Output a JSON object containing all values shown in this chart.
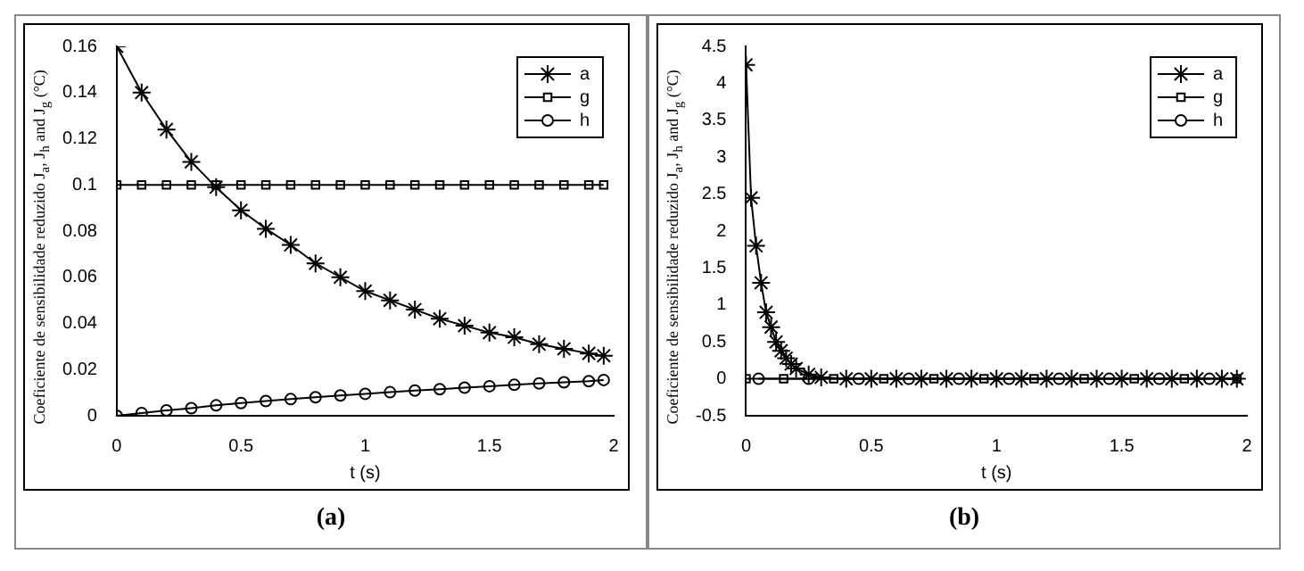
{
  "chart_data": [
    {
      "type": "line",
      "xlabel": "t (s)",
      "ylabel": "Coeficiente de sensibilidade reduzido  J$_{a}$, J$_{h}$ and J$_{g}$ (°C)",
      "annotations": [
        "(a)"
      ],
      "xlim": [
        0,
        2
      ],
      "xticks": [
        0,
        0.5,
        1,
        1.5,
        2
      ],
      "ylim": [
        0,
        0.16
      ],
      "yticks": [
        0,
        0.02,
        0.04,
        0.06,
        0.08,
        0.1,
        0.12,
        0.14,
        0.16
      ],
      "grid": false,
      "legend": "top right",
      "line_style": "solid",
      "x": [
        0,
        0.1,
        0.2,
        0.3,
        0.4,
        0.5,
        0.6,
        0.7,
        0.8,
        0.9,
        1,
        1.1,
        1.2,
        1.3,
        1.4,
        1.5,
        1.6,
        1.7,
        1.8,
        1.9,
        1.96
      ],
      "series": [
        {
          "name": "a",
          "color": "#000000",
          "marker": "cross",
          "values": [
            0.16,
            0.14,
            0.124,
            0.11,
            0.099,
            0.089,
            0.081,
            0.074,
            0.066,
            0.06,
            0.054,
            0.05,
            0.046,
            0.042,
            0.039,
            0.036,
            0.034,
            0.031,
            0.029,
            0.027,
            0.026
          ]
        },
        {
          "name": "g",
          "color": "#000000",
          "marker": "square",
          "values": [
            0.1,
            0.1,
            0.1,
            0.1,
            0.1,
            0.1,
            0.1,
            0.1,
            0.1,
            0.1,
            0.1,
            0.1,
            0.1,
            0.1,
            0.1,
            0.1,
            0.1,
            0.1,
            0.1,
            0.1,
            0.1
          ]
        },
        {
          "name": "h",
          "color": "#000000",
          "marker": "circle",
          "values": [
            0,
            0.0012,
            0.0023,
            0.0033,
            0.0045,
            0.0055,
            0.0064,
            0.0072,
            0.008,
            0.0088,
            0.0095,
            0.0102,
            0.0109,
            0.0115,
            0.0122,
            0.0128,
            0.0134,
            0.014,
            0.0145,
            0.015,
            0.0155
          ]
        }
      ]
    },
    {
      "type": "line",
      "xlabel": "t (s)",
      "ylabel": "Coeficiente de sensibilidade reduzido  J$_{a}$, J$_{h}$ and J$_{g}$ (°C)",
      "annotations": [
        "(b)"
      ],
      "xlim": [
        0,
        2
      ],
      "xticks": [
        0,
        0.5,
        1,
        1.5,
        2
      ],
      "ylim": [
        -0.5,
        4.5
      ],
      "yticks": [
        -0.5,
        0,
        0.5,
        1,
        1.5,
        2,
        2.5,
        3,
        3.5,
        4,
        4.5
      ],
      "grid": false,
      "legend": "top right",
      "line_style": "solid",
      "series": [
        {
          "name": "a",
          "color": "#000000",
          "marker": "cross",
          "x": [
            0,
            0.02,
            0.04,
            0.06,
            0.08,
            0.1,
            0.12,
            0.14,
            0.16,
            0.18,
            0.2,
            0.25,
            0.3,
            0.4,
            0.5,
            0.6,
            0.7,
            0.8,
            0.9,
            1,
            1.1,
            1.2,
            1.3,
            1.4,
            1.5,
            1.6,
            1.7,
            1.8,
            1.9,
            1.96
          ],
          "values": [
            4.25,
            2.45,
            1.8,
            1.3,
            0.9,
            0.7,
            0.5,
            0.38,
            0.28,
            0.2,
            0.14,
            0.06,
            0.02,
            0,
            0,
            0,
            0,
            0,
            0,
            0,
            0,
            0,
            0,
            0,
            0,
            0,
            0,
            0,
            0,
            0
          ]
        },
        {
          "name": "g",
          "color": "#000000",
          "marker": "square",
          "x": [
            0,
            0.15,
            0.35,
            0.55,
            0.75,
            0.95,
            1.15,
            1.35,
            1.55,
            1.75,
            1.96
          ],
          "values": [
            0,
            0,
            0,
            0,
            0,
            0,
            0,
            0,
            0,
            0,
            0
          ]
        },
        {
          "name": "h",
          "color": "#000000",
          "marker": "circle",
          "x": [
            0.05,
            0.25,
            0.45,
            0.65,
            0.85,
            1.05,
            1.25,
            1.45,
            1.65,
            1.85
          ],
          "values": [
            0,
            0,
            0,
            0,
            0,
            0,
            0,
            0,
            0,
            0
          ]
        }
      ]
    }
  ]
}
